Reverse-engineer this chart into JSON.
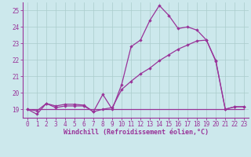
{
  "xlabel": "Windchill (Refroidissement éolien,°C)",
  "background_color": "#cce8ec",
  "grid_color": "#aacccc",
  "line_color": "#993399",
  "x_ticks": [
    0,
    1,
    2,
    3,
    4,
    5,
    6,
    7,
    8,
    9,
    10,
    11,
    12,
    13,
    14,
    15,
    16,
    17,
    18,
    19,
    20,
    21,
    22,
    23
  ],
  "ylim": [
    18.5,
    25.5
  ],
  "xlim": [
    -0.5,
    23.5
  ],
  "yticks": [
    19,
    20,
    21,
    22,
    23,
    24,
    25
  ],
  "line1_x": [
    0,
    1,
    2,
    3,
    4,
    5,
    6,
    7,
    8,
    9,
    10,
    11,
    12,
    13,
    14,
    15,
    16,
    17,
    18,
    19,
    20,
    21,
    22,
    23
  ],
  "line1_y": [
    19.0,
    18.7,
    19.35,
    19.1,
    19.2,
    19.2,
    19.2,
    18.85,
    19.9,
    19.0,
    20.5,
    22.8,
    23.2,
    24.4,
    25.3,
    24.7,
    23.9,
    24.0,
    23.8,
    23.2,
    21.9,
    19.0,
    19.15,
    19.15
  ],
  "line2_x": [
    0,
    23
  ],
  "line2_y": [
    19.0,
    19.0
  ],
  "line3_x": [
    0,
    1,
    2,
    3,
    4,
    5,
    6,
    7,
    8,
    9,
    10,
    11,
    12,
    13,
    14,
    15,
    16,
    17,
    18,
    19,
    20,
    21,
    22,
    23
  ],
  "line3_y": [
    19.0,
    18.9,
    19.35,
    19.2,
    19.3,
    19.3,
    19.25,
    18.85,
    19.0,
    19.1,
    20.2,
    20.7,
    21.15,
    21.5,
    21.95,
    22.3,
    22.65,
    22.9,
    23.15,
    23.2,
    21.95,
    19.0,
    19.15,
    19.15
  ],
  "marker": "D",
  "markersize": 2.2,
  "linewidth": 0.9,
  "tick_fontsize": 5.5,
  "label_fontsize": 6.0
}
